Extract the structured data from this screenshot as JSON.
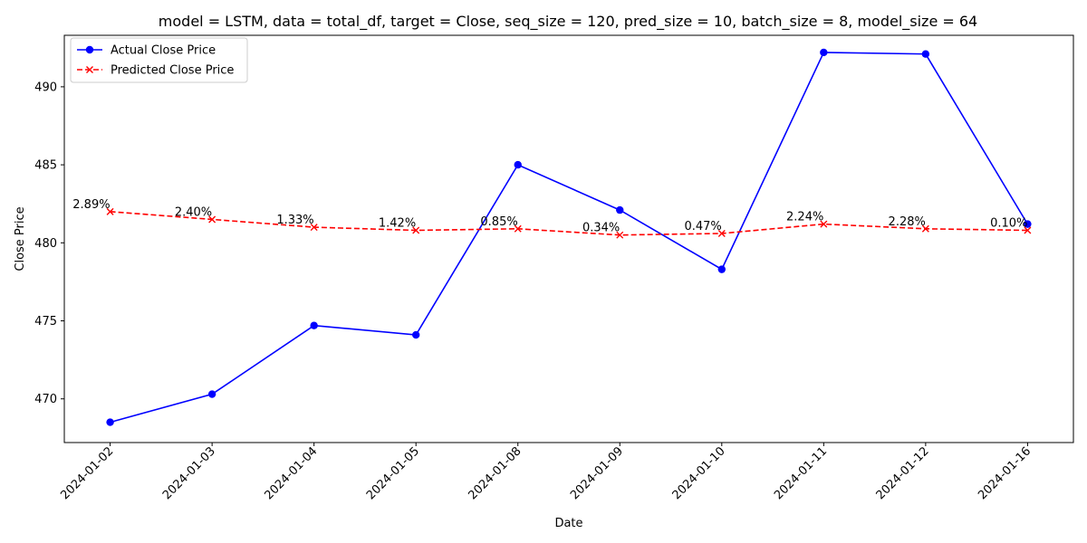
{
  "chart_data": {
    "type": "line",
    "title": "model = LSTM, data = total_df, target = Close, seq_size = 120, pred_size = 10, batch_size = 8, model_size = 64",
    "xlabel": "Date",
    "ylabel": "Close Price",
    "categories": [
      "2024-01-02",
      "2024-01-03",
      "2024-01-04",
      "2024-01-05",
      "2024-01-08",
      "2024-01-09",
      "2024-01-10",
      "2024-01-11",
      "2024-01-12",
      "2024-01-16"
    ],
    "ylim": [
      467.2,
      493.3
    ],
    "yticks": [
      470,
      475,
      480,
      485,
      490
    ],
    "grid": false,
    "legend_position": "top-left",
    "series": [
      {
        "name": "Actual Close Price",
        "color": "#0000ff",
        "marker": "circle",
        "linestyle": "solid",
        "values": [
          468.5,
          470.3,
          474.7,
          474.1,
          485.0,
          482.1,
          478.3,
          492.2,
          492.1,
          481.2
        ]
      },
      {
        "name": "Predicted Close Price",
        "color": "#ff0000",
        "marker": "x",
        "linestyle": "dashed",
        "values": [
          482.0,
          481.5,
          481.0,
          480.8,
          480.9,
          480.5,
          480.6,
          481.2,
          480.9,
          480.8
        ]
      }
    ],
    "annotations": [
      "2.89%",
      "2.40%",
      "1.33%",
      "1.42%",
      "0.85%",
      "0.34%",
      "0.47%",
      "2.24%",
      "2.28%",
      "0.10%"
    ]
  }
}
